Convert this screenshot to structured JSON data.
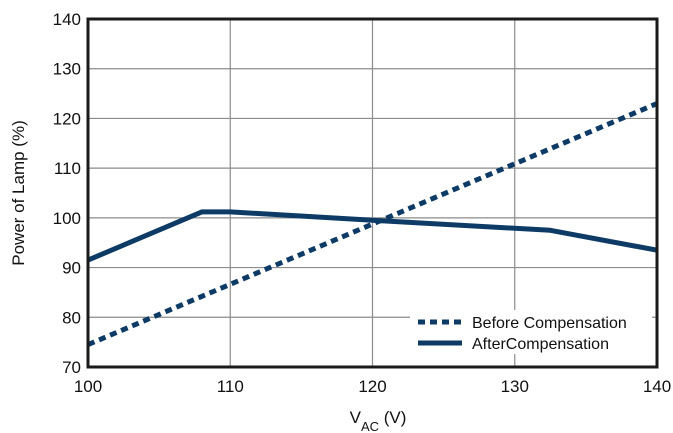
{
  "chart_data": {
    "type": "line",
    "title": "",
    "xlabel": "V",
    "xlabel_subscript": "AC",
    "xlabel_unit": " (V)",
    "ylabel": "Power of Lamp (%)",
    "xlim": [
      100,
      140
    ],
    "ylim": [
      70,
      140
    ],
    "x_ticks": [
      100,
      110,
      120,
      130,
      140
    ],
    "y_ticks": [
      70,
      80,
      90,
      100,
      110,
      120,
      130,
      140
    ],
    "grid": true,
    "legend_position": "bottom-right",
    "series": [
      {
        "name": "Before Compensation",
        "style": "dashed",
        "color": "#0d3b66",
        "x": [
          100,
          140
        ],
        "y": [
          74.5,
          123
        ]
      },
      {
        "name": "AfterCompensation",
        "style": "solid",
        "color": "#0d3b66",
        "x": [
          100,
          108,
          110,
          120,
          132.5,
          140
        ],
        "y": [
          91.5,
          101.2,
          101.2,
          99.5,
          97.5,
          93.5
        ]
      }
    ]
  }
}
